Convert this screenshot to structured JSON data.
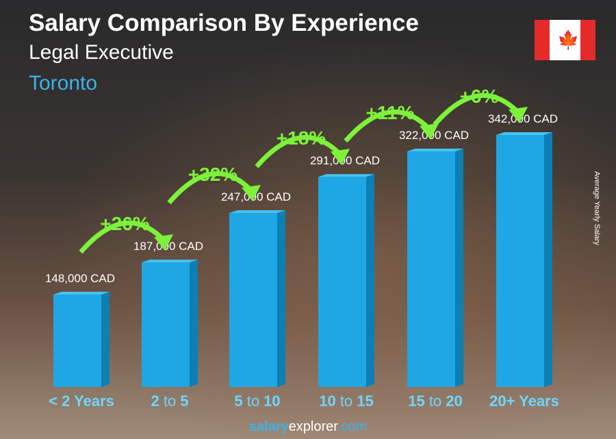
{
  "header": {
    "title": "Salary Comparison By Experience",
    "subtitle": "Legal Executive",
    "city": "Toronto"
  },
  "flag": "canada-flag",
  "footer": {
    "brand_a": "salary",
    "brand_b": "explorer",
    "brand_c": ".com"
  },
  "chart_data": {
    "type": "bar",
    "title": "Salary Comparison By Experience",
    "ylabel": "Average Yearly Salary",
    "categories": [
      [
        "< 2 Years",
        "",
        ""
      ],
      [
        "2",
        " to ",
        "5"
      ],
      [
        "5",
        " to ",
        "10"
      ],
      [
        "10",
        " to ",
        "15"
      ],
      [
        "15",
        " to ",
        "20"
      ],
      [
        "20+ Years",
        "",
        ""
      ]
    ],
    "values": [
      148000,
      187000,
      247000,
      291000,
      322000,
      342000
    ],
    "value_labels": [
      "148,000 CAD",
      "187,000 CAD",
      "247,000 CAD",
      "291,000 CAD",
      "322,000 CAD",
      "342,000 CAD"
    ],
    "increases": [
      "+26%",
      "+32%",
      "+18%",
      "+11%",
      "+6%"
    ],
    "colors": {
      "bar": "#1ea7e4",
      "bar_side": "#0c7fb4",
      "bar_top": "#47c3f0",
      "increase": "#7ef23a",
      "category": "#6fd6ff"
    }
  }
}
